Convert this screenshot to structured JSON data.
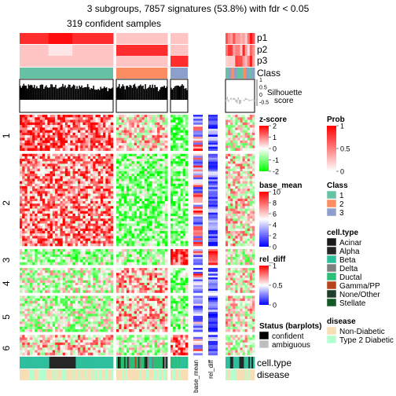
{
  "title_line1": "3 subgroups, 7857 signatures (53.8%) with fdr < 0.05",
  "title_line2": "319 confident samples",
  "chart_data": {
    "type": "heatmap",
    "title": "3 subgroups, 7857 signatures (53.8%) with fdr < 0.05",
    "subtitle": "319 confident samples",
    "top_annotations": [
      "p1",
      "p2",
      "p3",
      "Class"
    ],
    "silhouette_label": "Silhouette\nscore",
    "silhouette_ticks": [
      "1",
      "0.5",
      "0",
      "-0.5"
    ],
    "row_groups": [
      "1",
      "2",
      "3",
      "4",
      "5",
      "6"
    ],
    "row_group_fraction": [
      0.16,
      0.41,
      0.07,
      0.11,
      0.16,
      0.09
    ],
    "column_groups": [
      {
        "class": "1",
        "fraction_of_samples": 0.44
      },
      {
        "class": "2",
        "fraction_of_samples": 0.24
      },
      {
        "class": "3",
        "fraction_of_samples": 0.09
      },
      {
        "class": "ambiguous",
        "fraction_of_samples": 0.15
      }
    ],
    "bottom_annotations": [
      "cell.type",
      "disease"
    ],
    "side_columns": [
      "base_mean",
      "rel_diff"
    ],
    "legends": [
      {
        "title": "z-score",
        "type": "continuous",
        "ticks": [
          "2",
          "1",
          "0",
          "-1",
          "-2"
        ],
        "colors": [
          "#ff0000",
          "#ffffff",
          "#00ff00"
        ]
      },
      {
        "title": "base_mean",
        "type": "continuous",
        "ticks": [
          "10",
          "8",
          "6",
          "4",
          "2",
          "0"
        ],
        "colors": [
          "#ff0000",
          "#ffffff",
          "#0000ff"
        ]
      },
      {
        "title": "rel_diff",
        "type": "continuous",
        "ticks": [
          "1",
          "0.5",
          "0"
        ],
        "colors": [
          "#ff0000",
          "#ffffff",
          "#0000ff"
        ]
      },
      {
        "title": "Status (barplots)",
        "type": "discrete",
        "items": [
          {
            "label": "confident",
            "color": "#000000"
          },
          {
            "label": "ambiguous",
            "color": "#bebebe"
          }
        ]
      },
      {
        "title": "Prob",
        "type": "continuous",
        "ticks": [
          "1",
          "0.5",
          "0"
        ],
        "colors": [
          "#ff0000",
          "#ffffff"
        ]
      },
      {
        "title": "Class",
        "type": "discrete",
        "items": [
          {
            "label": "1",
            "color": "#66c2a5"
          },
          {
            "label": "2",
            "color": "#fc8d62"
          },
          {
            "label": "3",
            "color": "#8da0cb"
          }
        ]
      },
      {
        "title": "cell.type",
        "type": "discrete",
        "items": [
          {
            "label": "Acinar",
            "color": "#1a1a1a"
          },
          {
            "label": "Alpha",
            "color": "#262626"
          },
          {
            "label": "Beta",
            "color": "#2ebf9c"
          },
          {
            "label": "Delta",
            "color": "#7f7f7f"
          },
          {
            "label": "Ductal",
            "color": "#2bbf78"
          },
          {
            "label": "Gamma/PP",
            "color": "#b5441d"
          },
          {
            "label": "None/Other",
            "color": "#1f3f2c"
          },
          {
            "label": "Stellate",
            "color": "#145a24"
          }
        ]
      },
      {
        "title": "disease",
        "type": "discrete",
        "items": [
          {
            "label": "Non-Diabetic",
            "color": "#f7deb5"
          },
          {
            "label": "Type 2 Diabetic",
            "color": "#b3ffd0"
          }
        ]
      }
    ]
  }
}
